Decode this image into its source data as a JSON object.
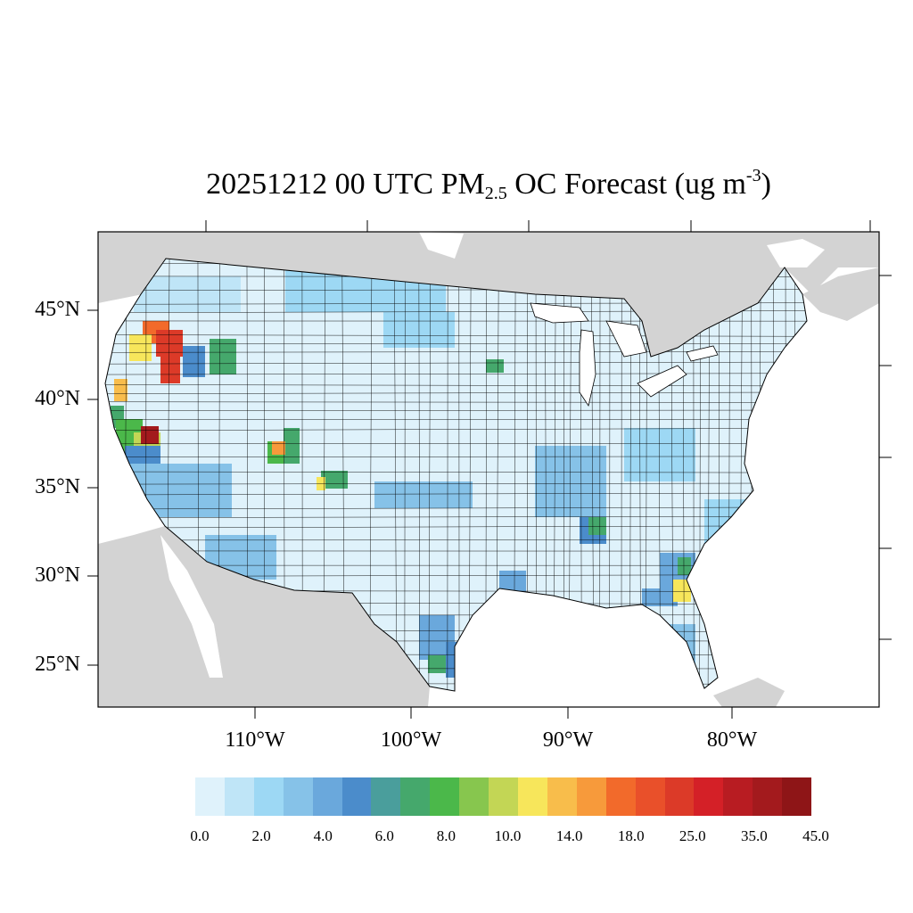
{
  "title": {
    "prefix": "20251212 00 UTC PM",
    "subscript": "2.5",
    "middle": " OC Forecast (ug m",
    "superscript": "-3",
    "suffix": ")"
  },
  "axes": {
    "lat_labels": [
      "45°N",
      "40°N",
      "35°N",
      "30°N",
      "25°N"
    ],
    "lon_labels": [
      "110°W",
      "100°W",
      "90°W",
      "80°W"
    ]
  },
  "colorbar": {
    "colors": [
      "#dff2fb",
      "#bfe5f7",
      "#9dd8f4",
      "#86c2e8",
      "#6aa8dc",
      "#4b8ccb",
      "#4a9e9c",
      "#45a86c",
      "#4bb84a",
      "#87c64e",
      "#c3d655",
      "#f7e65b",
      "#f8bd4b",
      "#f79a3b",
      "#f26a2b",
      "#e9502a",
      "#dc3a28",
      "#d42027",
      "#b81c22",
      "#a31a1d",
      "#8e1517"
    ],
    "tick_labels": [
      "0.0",
      "2.0",
      "4.0",
      "6.0",
      "8.0",
      "10.0",
      "14.0",
      "18.0",
      "25.0",
      "35.0",
      "45.0"
    ]
  },
  "colors": {
    "land_outside": "#d3d3d3",
    "water": "#ffffff",
    "county_border": "#000000"
  }
}
